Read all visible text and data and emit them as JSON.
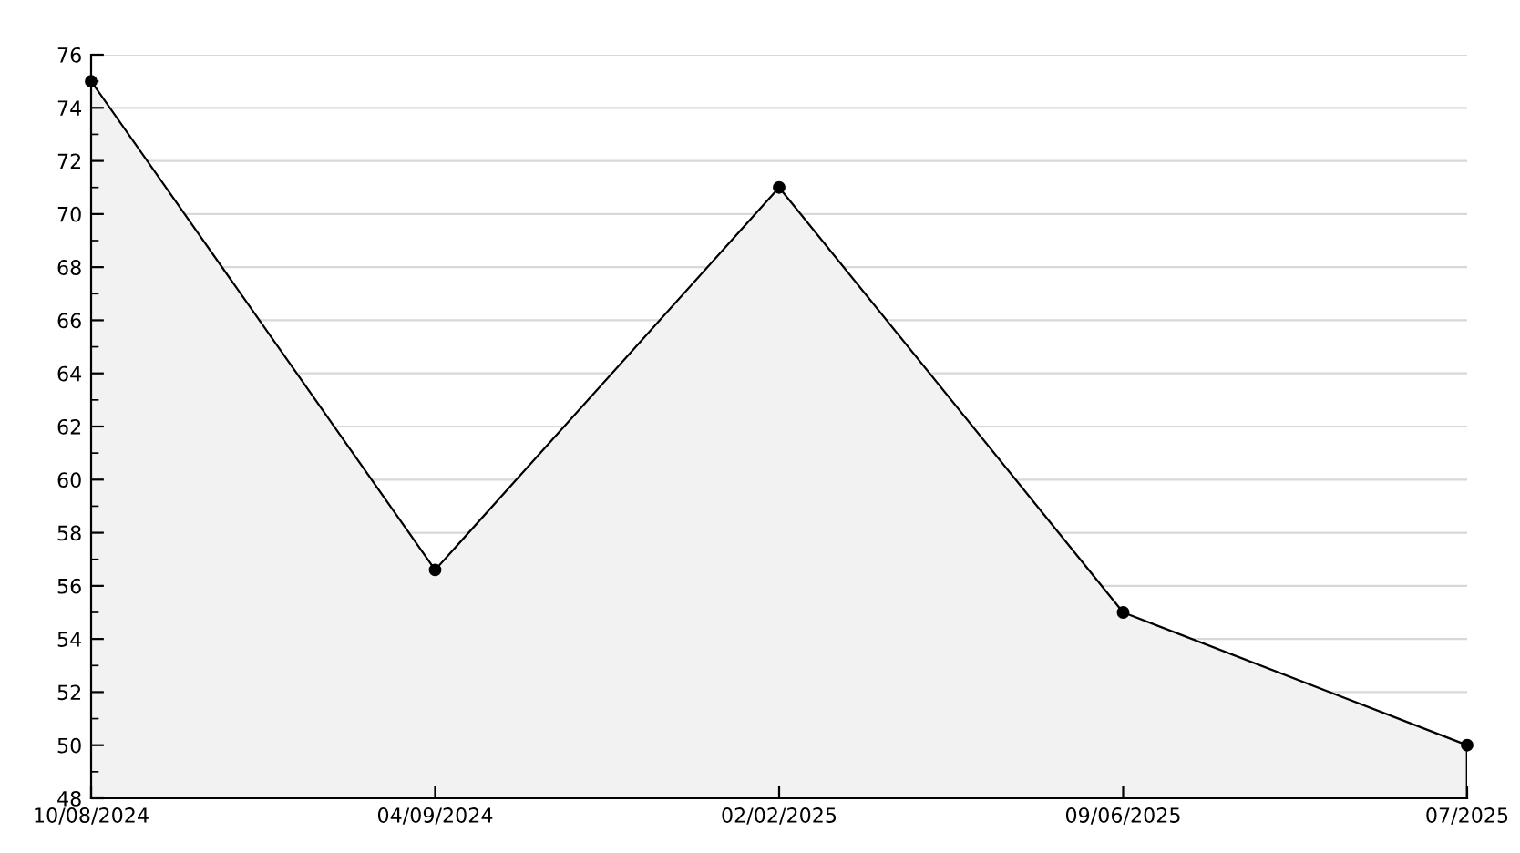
{
  "chart_data": {
    "type": "area",
    "categories": [
      "10/08/2024",
      "04/09/2024",
      "02/02/2025",
      "09/06/2025",
      "07/2025"
    ],
    "series": [
      {
        "color": "#000000",
        "values": [
          75,
          56.6,
          71,
          55,
          50
        ]
      }
    ],
    "ylim": [
      48,
      76
    ],
    "yticks": [
      48,
      {
        "value": 49,
        "label": null
      },
      50,
      {
        "value": 51,
        "label": null
      },
      52,
      {
        "value": 53,
        "label": null
      },
      54,
      {
        "value": 55,
        "label": null
      },
      56,
      {
        "value": 57,
        "label": null
      },
      58,
      {
        "value": 59,
        "label": null
      },
      60,
      {
        "value": 61,
        "label": null
      },
      62,
      {
        "value": 63,
        "label": null
      },
      64,
      {
        "value": 65,
        "label": null
      },
      66,
      {
        "value": 67,
        "label": null
      },
      68,
      {
        "value": 69,
        "label": null
      },
      70,
      {
        "value": 71,
        "label": null
      },
      72,
      {
        "value": 73,
        "label": null
      },
      74,
      {
        "value": 75,
        "label": null
      },
      76
    ],
    "grid": "y",
    "marker": "circle",
    "line_style": "solid",
    "legend": false
  }
}
